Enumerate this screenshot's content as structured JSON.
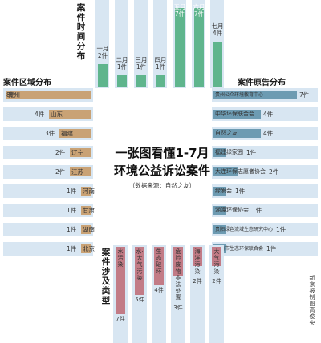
{
  "headline": {
    "line1": "一张图看懂1-7月",
    "line2": "环境公益诉讼案件",
    "source": "（数据来源：自然之友）"
  },
  "credit": "新京报制图高俊央",
  "chart_data": [
    {
      "type": "bar",
      "title": "案件时间分布",
      "categories": [
        "一月",
        "二月",
        "三月",
        "四月",
        "五月",
        "六月",
        "七月"
      ],
      "values": [
        2,
        1,
        1,
        1,
        7,
        7,
        4
      ],
      "value_labels": [
        "2件",
        "1件",
        "1件",
        "1件",
        "7件",
        "7件",
        "4件"
      ],
      "ylim": [
        0,
        7
      ]
    },
    {
      "type": "bar",
      "title": "案件区域分布",
      "categories": [
        "贵州",
        "山东",
        "福建",
        "辽宁",
        "江苏",
        "河南",
        "甘肃",
        "湖南",
        "北京"
      ],
      "values": [
        8,
        4,
        3,
        2,
        2,
        1,
        1,
        1,
        1
      ],
      "value_labels": [
        "8件",
        "4件",
        "3件",
        "2件",
        "2件",
        "1件",
        "1件",
        "1件",
        "1件"
      ],
      "xlim": [
        0,
        8
      ]
    },
    {
      "type": "bar",
      "title": "案件原告分布",
      "categories": [
        "贵州公众环境教育中心",
        "中华环保联合会",
        "自然之友",
        "福建绿家园",
        "大连环保志愿者协会",
        "绿发会",
        "湘潭环保协会",
        "贵阳绿色流域生态研究中心",
        "清镇市生态环保联合会"
      ],
      "values": [
        7,
        4,
        4,
        1,
        2,
        1,
        1,
        1,
        1
      ],
      "value_labels": [
        "7件",
        "4件",
        "4件",
        "1件",
        "2件",
        "1件",
        "1件",
        "1件",
        "1件"
      ],
      "xlim": [
        0,
        7
      ]
    },
    {
      "type": "bar",
      "title": "案件涉及类型",
      "categories": [
        "水污染",
        "水·大气污染",
        "生态破坏",
        "危险废物非法处置",
        "海洋污染",
        "大气污染"
      ],
      "values": [
        7,
        5,
        4,
        3,
        2,
        2
      ],
      "value_labels": [
        "7件",
        "5件",
        "4件",
        "3件",
        "2件",
        "2件"
      ],
      "ylim": [
        0,
        7
      ]
    }
  ]
}
